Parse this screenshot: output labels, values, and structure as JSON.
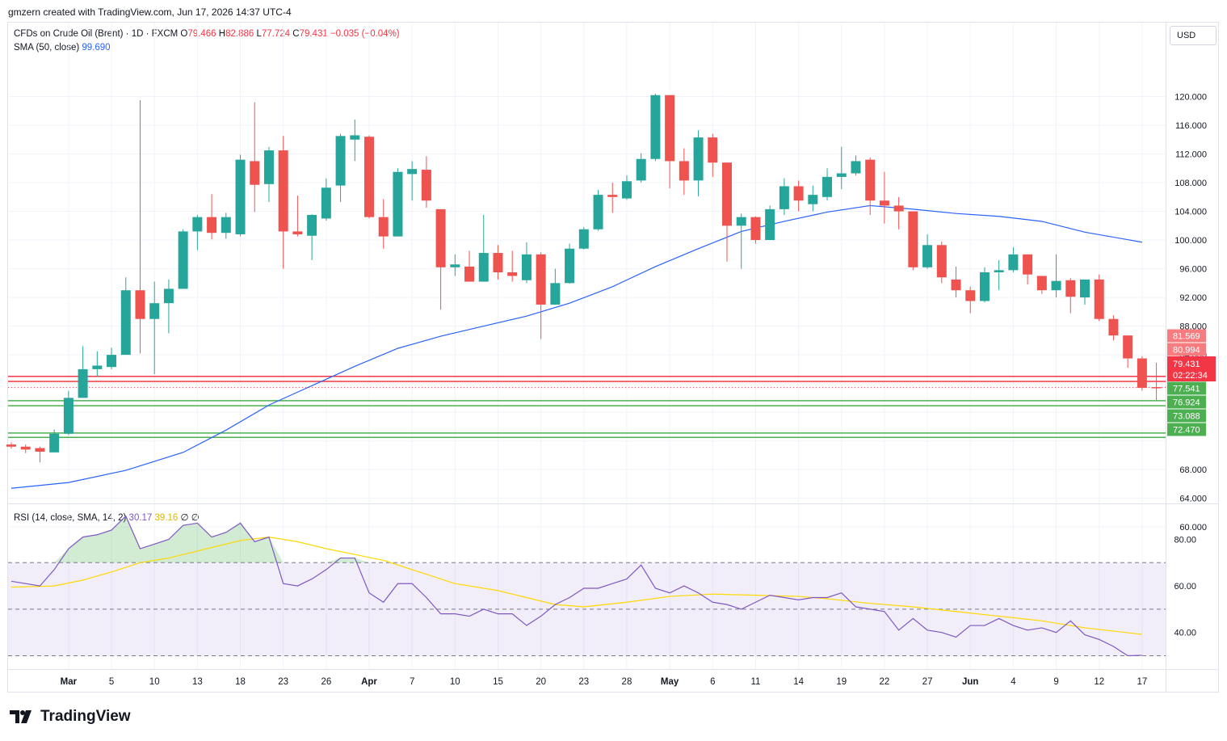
{
  "header": {
    "credit": "gmzern created with TradingView.com, Jun 17, 2026 14:37 UTC-4"
  },
  "legend": {
    "symbol": "CFDs on Crude Oil (Brent) · 1D · FXCM",
    "o_label": "O",
    "o": "79.466",
    "h_label": "H",
    "h": "82.886",
    "l_label": "L",
    "l": "77.724",
    "c_label": "C",
    "c": "79.431",
    "change": "−0.035 (−0.04%)",
    "sma_label": "SMA (50, close)",
    "sma_value": "99.690",
    "rsi_label": "RSI (14, close, SMA, 14, 2)",
    "rsi_value": "30.17",
    "rsi_ma_value": "39.16",
    "rsi_extra": "∅  ∅"
  },
  "currency": "USD",
  "brand": "TradingView",
  "chart_data": {
    "type": "candlestick",
    "price_axis": {
      "range": [
        60,
        122
      ],
      "ticks": [
        "120.000",
        "116.000",
        "112.000",
        "108.000",
        "104.000",
        "100.000",
        "96.000",
        "92.000",
        "88.000",
        "84.000",
        "68.000",
        "64.000",
        "60.000"
      ],
      "tick_values": [
        120,
        116,
        112,
        108,
        104,
        100,
        96,
        92,
        88,
        84,
        68,
        64,
        60
      ]
    },
    "level_labels": [
      {
        "text": "81.569",
        "value": 81.569,
        "color": "#f77c80"
      },
      {
        "text": "80.994",
        "value": 80.994,
        "color": "#f77c80"
      },
      {
        "text": "77.541",
        "value": 77.541,
        "color": "#4caf50"
      },
      {
        "text": "76.924",
        "value": 76.924,
        "color": "#4caf50"
      },
      {
        "text": "73.088",
        "value": 73.088,
        "color": "#4caf50"
      },
      {
        "text": "72.470",
        "value": 72.47,
        "color": "#4caf50"
      }
    ],
    "last_price": {
      "value": 79.431,
      "text": "79.431",
      "countdown": "02:22:34"
    },
    "lines": [
      {
        "value": 81.0,
        "color": "#f23645"
      },
      {
        "value": 80.3,
        "color": "#f23645"
      },
      {
        "value": 77.6,
        "color": "#4caf50"
      },
      {
        "value": 76.9,
        "color": "#4caf50"
      },
      {
        "value": 73.1,
        "color": "#4caf50"
      },
      {
        "value": 72.5,
        "color": "#4caf50"
      }
    ],
    "x_labels": [
      {
        "i": 4,
        "t": "Mar"
      },
      {
        "i": 7,
        "t": "5"
      },
      {
        "i": 10,
        "t": "10"
      },
      {
        "i": 13,
        "t": "13"
      },
      {
        "i": 16,
        "t": "18"
      },
      {
        "i": 19,
        "t": "23"
      },
      {
        "i": 22,
        "t": "26"
      },
      {
        "i": 25,
        "t": "Apr"
      },
      {
        "i": 28,
        "t": "7"
      },
      {
        "i": 31,
        "t": "10"
      },
      {
        "i": 34,
        "t": "15"
      },
      {
        "i": 37,
        "t": "20"
      },
      {
        "i": 40,
        "t": "23"
      },
      {
        "i": 43,
        "t": "28"
      },
      {
        "i": 46,
        "t": "May"
      },
      {
        "i": 49,
        "t": "6"
      },
      {
        "i": 52,
        "t": "11"
      },
      {
        "i": 55,
        "t": "14"
      },
      {
        "i": 58,
        "t": "19"
      },
      {
        "i": 61,
        "t": "22"
      },
      {
        "i": 64,
        "t": "27"
      },
      {
        "i": 67,
        "t": "Jun"
      },
      {
        "i": 70,
        "t": "4"
      },
      {
        "i": 73,
        "t": "9"
      },
      {
        "i": 76,
        "t": "12"
      },
      {
        "i": 79,
        "t": "17"
      }
    ],
    "candles": [
      [
        71.5,
        71.2,
        71.8,
        70.9
      ],
      [
        71.2,
        70.8,
        71.5,
        70.3
      ],
      [
        71.0,
        70.5,
        71.2,
        69.0
      ],
      [
        70.4,
        73.0,
        73.6,
        70.4
      ],
      [
        73.0,
        78.0,
        79.0,
        72.8
      ],
      [
        78.0,
        82.0,
        85.2,
        78.0
      ],
      [
        82.0,
        82.5,
        84.5,
        81.0
      ],
      [
        82.3,
        84.0,
        85.0,
        82.0
      ],
      [
        84.0,
        93.0,
        94.8,
        84.0
      ],
      [
        93.0,
        89.0,
        119.5,
        84.2
      ],
      [
        89.0,
        91.2,
        94.2,
        81.3
      ],
      [
        91.2,
        93.2,
        94.5,
        87.0
      ],
      [
        93.2,
        101.2,
        101.5,
        93.2
      ],
      [
        101.2,
        103.2,
        103.5,
        98.6
      ],
      [
        103.2,
        101.0,
        106.4,
        100.1
      ],
      [
        101.0,
        103.2,
        103.8,
        100.2
      ],
      [
        100.8,
        111.2,
        111.9,
        100.5
      ],
      [
        111.0,
        107.7,
        119.2,
        103.9
      ],
      [
        107.8,
        112.5,
        113.0,
        105.3
      ],
      [
        112.5,
        101.2,
        114.5,
        96.0
      ],
      [
        101.2,
        100.8,
        106.2,
        100.5
      ],
      [
        100.6,
        103.5,
        103.6,
        97.2
      ],
      [
        103.0,
        107.3,
        108.6,
        102.7
      ],
      [
        107.6,
        114.5,
        114.8,
        105.3
      ],
      [
        114.0,
        114.6,
        116.8,
        111.0
      ],
      [
        114.4,
        103.2,
        114.6,
        103.0
      ],
      [
        103.2,
        100.5,
        105.7,
        98.8
      ],
      [
        100.5,
        109.5,
        110.0,
        100.5
      ],
      [
        109.2,
        109.9,
        111.0,
        105.5
      ],
      [
        109.8,
        105.5,
        111.7,
        104.5
      ],
      [
        104.3,
        96.2,
        104.3,
        90.3
      ],
      [
        96.2,
        96.6,
        98.0,
        95.0
      ],
      [
        96.3,
        94.2,
        98.5,
        94.2
      ],
      [
        94.2,
        98.2,
        103.5,
        94.2
      ],
      [
        98.2,
        95.5,
        99.3,
        94.5
      ],
      [
        95.5,
        95.0,
        98.5,
        94.2
      ],
      [
        94.4,
        98.0,
        99.7,
        94.0
      ],
      [
        98.0,
        91.0,
        98.3,
        86.2
      ],
      [
        91.0,
        94.0,
        96.0,
        91.0
      ],
      [
        94.0,
        98.8,
        99.5,
        93.9
      ],
      [
        98.8,
        101.5,
        101.8,
        98.7
      ],
      [
        101.5,
        106.3,
        107.0,
        101.3
      ],
      [
        106.3,
        106.0,
        108.0,
        103.8
      ],
      [
        105.8,
        108.2,
        109.0,
        105.6
      ],
      [
        108.3,
        111.3,
        112.1,
        108.0
      ],
      [
        111.3,
        120.2,
        120.4,
        111.0
      ],
      [
        120.2,
        111.0,
        120.2,
        107.2
      ],
      [
        111.0,
        108.3,
        112.8,
        106.3
      ],
      [
        108.3,
        114.3,
        115.3,
        106.1
      ],
      [
        114.3,
        110.8,
        114.8,
        108.8
      ],
      [
        110.8,
        102.0,
        110.8,
        97.0
      ],
      [
        102.0,
        103.2,
        103.7,
        96.0
      ],
      [
        103.2,
        100.0,
        103.3,
        99.5
      ],
      [
        100.0,
        104.3,
        104.8,
        100.0
      ],
      [
        104.3,
        107.5,
        108.6,
        103.5
      ],
      [
        107.5,
        105.5,
        108.3,
        104.0
      ],
      [
        105.0,
        106.3,
        107.6,
        104.0
      ],
      [
        106.0,
        108.8,
        110.0,
        105.5
      ],
      [
        108.8,
        109.3,
        113.0,
        107.1
      ],
      [
        109.3,
        111.0,
        111.8,
        109.0
      ],
      [
        111.2,
        105.5,
        111.5,
        103.5
      ],
      [
        105.5,
        104.8,
        109.5,
        102.3
      ],
      [
        104.8,
        104.0,
        106.0,
        101.5
      ],
      [
        104.0,
        96.2,
        104.0,
        95.8
      ],
      [
        96.2,
        99.3,
        100.8,
        96.0
      ],
      [
        99.3,
        94.8,
        99.8,
        94.0
      ],
      [
        94.5,
        93.0,
        96.3,
        92.0
      ],
      [
        93.0,
        91.5,
        93.5,
        89.8
      ],
      [
        91.5,
        95.5,
        96.2,
        91.3
      ],
      [
        95.5,
        95.8,
        97.2,
        93.0
      ],
      [
        95.8,
        98.0,
        99.0,
        95.5
      ],
      [
        98.0,
        95.2,
        98.0,
        93.8
      ],
      [
        95.0,
        93.0,
        95.0,
        92.5
      ],
      [
        93.0,
        94.3,
        98.0,
        92.0
      ],
      [
        94.4,
        92.1,
        94.7,
        89.8
      ],
      [
        92.0,
        94.5,
        94.5,
        91.0
      ],
      [
        94.5,
        89.0,
        95.2,
        88.7
      ],
      [
        89.0,
        86.7,
        89.5,
        86.0
      ],
      [
        86.7,
        83.5,
        86.7,
        82.2
      ],
      [
        83.5,
        79.4,
        83.8,
        79.0
      ],
      [
        79.5,
        79.4,
        82.9,
        77.7
      ]
    ],
    "sma": [
      [
        0,
        65.4
      ],
      [
        4,
        66.2
      ],
      [
        8,
        67.9
      ],
      [
        12,
        70.4
      ],
      [
        15,
        73.5
      ],
      [
        18,
        77.0
      ],
      [
        21,
        79.7
      ],
      [
        24,
        82.4
      ],
      [
        27,
        84.9
      ],
      [
        30,
        86.6
      ],
      [
        33,
        88.0
      ],
      [
        36,
        89.4
      ],
      [
        39,
        91.2
      ],
      [
        42,
        93.5
      ],
      [
        45,
        96.3
      ],
      [
        48,
        98.8
      ],
      [
        51,
        101.2
      ],
      [
        54,
        102.6
      ],
      [
        57,
        103.9
      ],
      [
        60,
        104.8
      ],
      [
        63,
        104.3
      ],
      [
        66,
        103.7
      ],
      [
        69,
        103.3
      ],
      [
        72,
        102.6
      ],
      [
        75,
        101.1
      ],
      [
        79,
        99.7
      ]
    ],
    "rsi_axis": {
      "range": [
        24,
        90
      ],
      "ticks": [
        "80.00",
        "60.00",
        "40.00"
      ],
      "tick_values": [
        80,
        60,
        40
      ],
      "upper_band": 70,
      "middle": 50,
      "lower_band": 30
    },
    "rsi": [
      62,
      61,
      60,
      67,
      76,
      81,
      82,
      84,
      90,
      76,
      78,
      80,
      86,
      87,
      81,
      83,
      87,
      79,
      81,
      61,
      60,
      63,
      67,
      72,
      72,
      57,
      53,
      61,
      61,
      55,
      48,
      48,
      47,
      50,
      48,
      48,
      43,
      47,
      52,
      55,
      59,
      59,
      61,
      63,
      69,
      59,
      57,
      60,
      57,
      53,
      52,
      50,
      53,
      56,
      55,
      54,
      55,
      55,
      57,
      51,
      50,
      49,
      41,
      46,
      41,
      40,
      38,
      43,
      43,
      46,
      43,
      41,
      42,
      40,
      45,
      39,
      37,
      34,
      30,
      30.2
    ],
    "rsi_ma": [
      [
        0,
        59.5
      ],
      [
        3,
        60
      ],
      [
        5,
        62.5
      ],
      [
        7,
        66
      ],
      [
        9,
        70
      ],
      [
        11,
        72
      ],
      [
        13,
        75
      ],
      [
        16,
        79.5
      ],
      [
        18,
        81
      ],
      [
        20,
        79
      ],
      [
        22,
        76
      ],
      [
        24,
        73.5
      ],
      [
        26,
        71
      ],
      [
        28,
        67
      ],
      [
        31,
        61
      ],
      [
        34,
        58
      ],
      [
        36,
        55
      ],
      [
        38,
        52
      ],
      [
        40,
        51
      ],
      [
        43,
        53
      ],
      [
        46,
        55.5
      ],
      [
        49,
        56.5
      ],
      [
        52,
        56
      ],
      [
        55,
        55.5
      ],
      [
        57,
        54.5
      ],
      [
        60,
        52.5
      ],
      [
        63,
        51
      ],
      [
        66,
        49
      ],
      [
        69,
        47
      ],
      [
        72,
        45
      ],
      [
        75,
        42
      ],
      [
        79,
        39.2
      ]
    ]
  }
}
